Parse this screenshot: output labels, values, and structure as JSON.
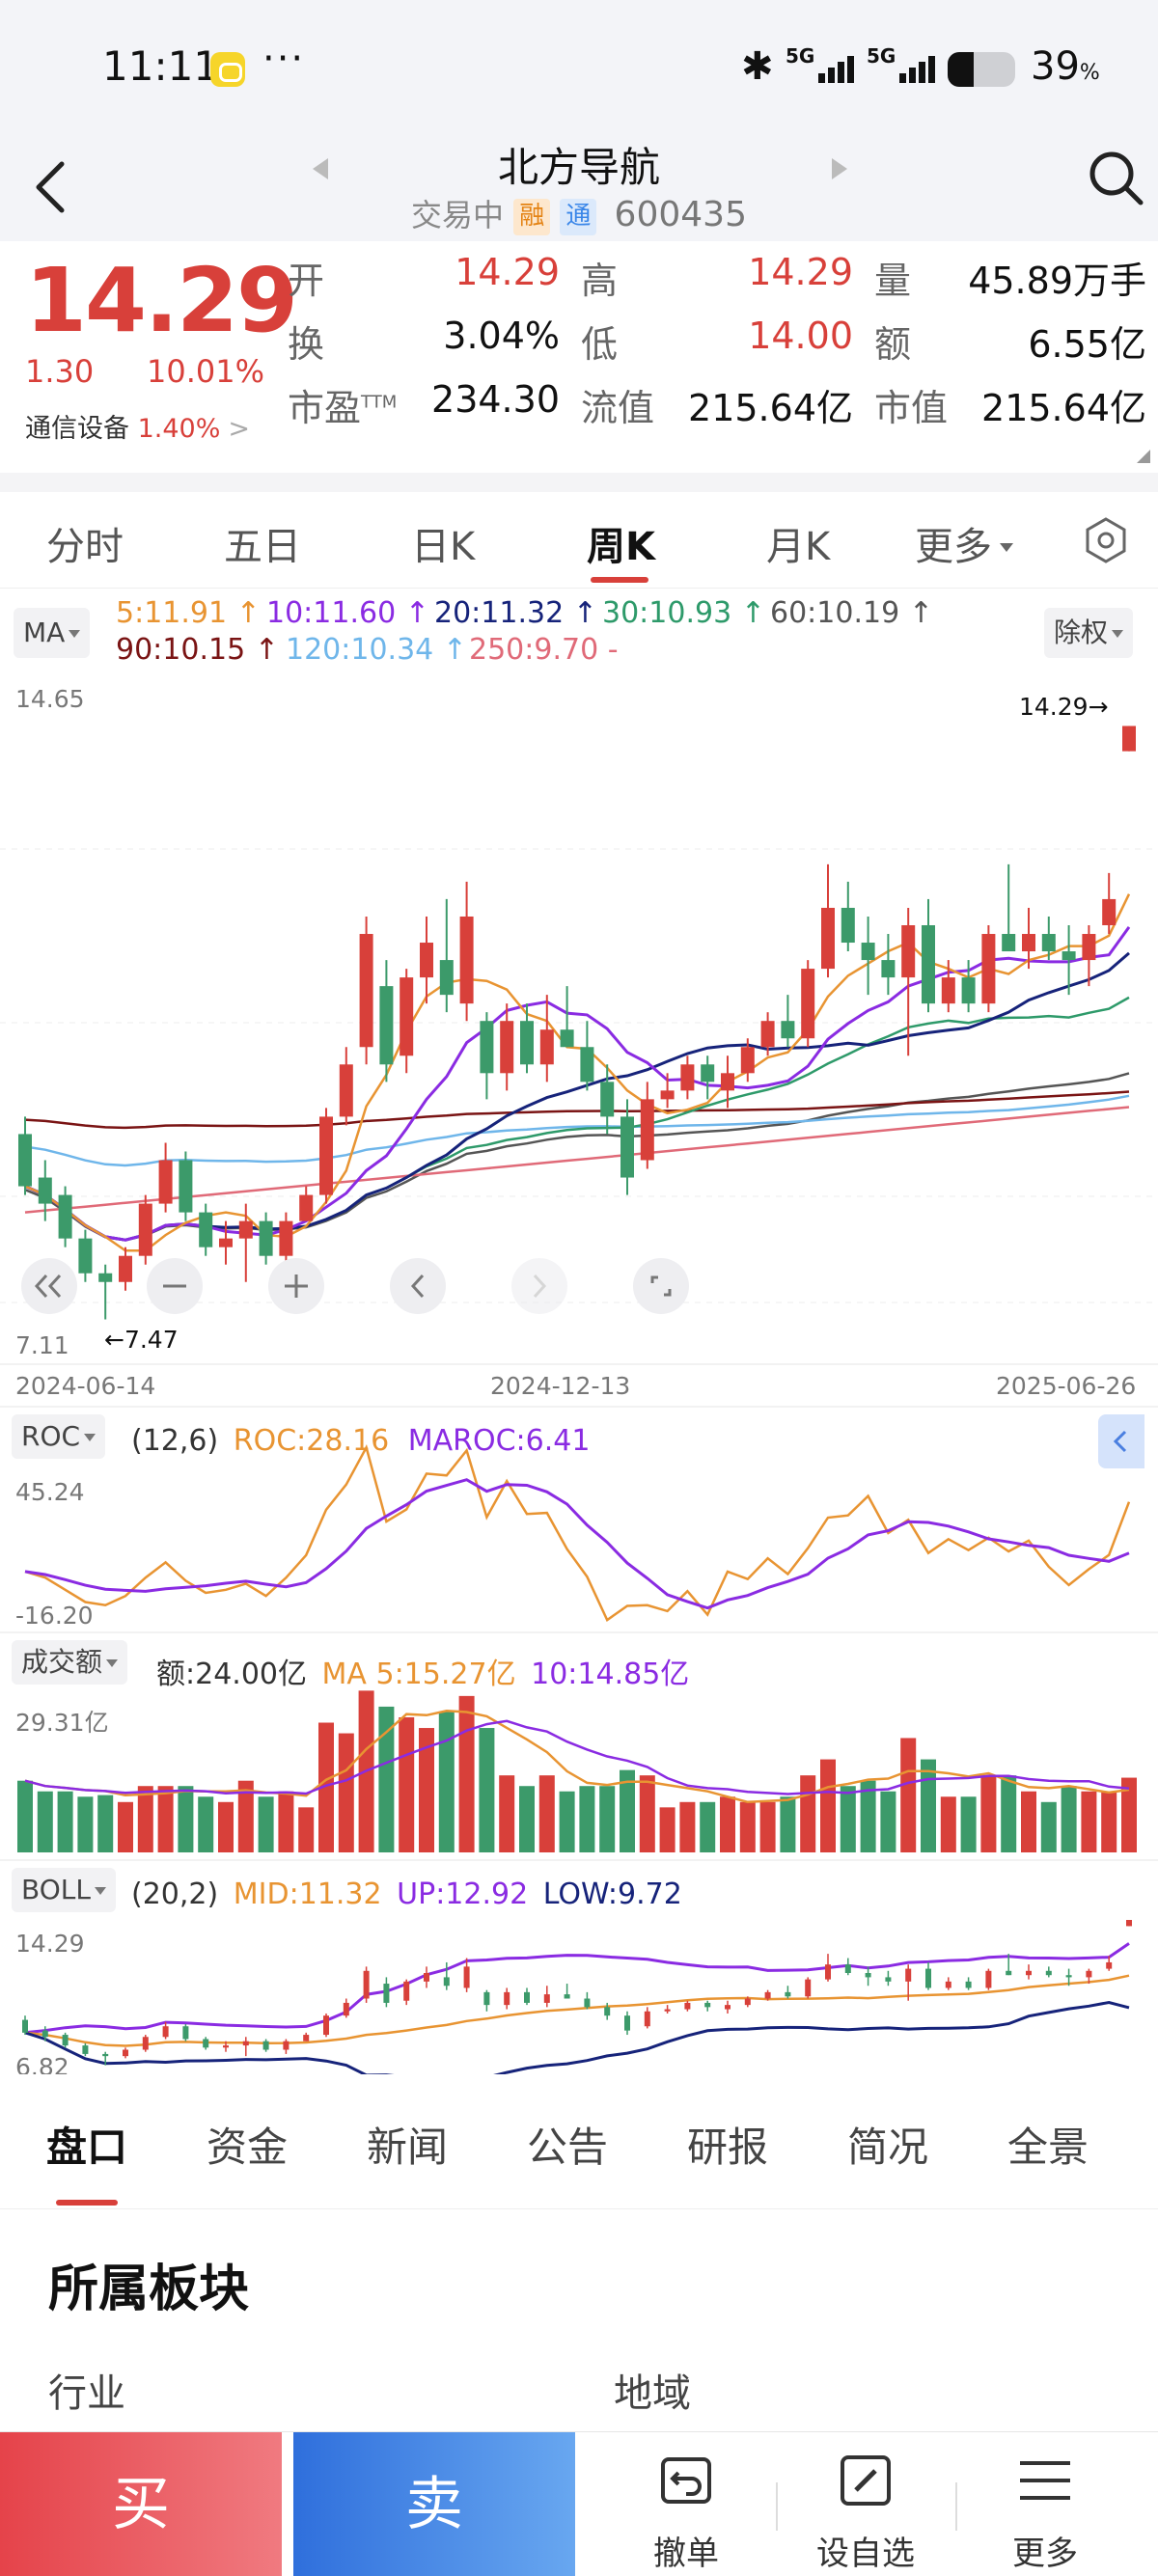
{
  "status_bar": {
    "time": "11:11",
    "dots": "···",
    "battery_pct": "39",
    "battery_unit": "%",
    "battery_level": 0.39,
    "signal_1": "5G",
    "signal_2": "5G"
  },
  "header": {
    "title": "北方导航",
    "status": "交易中",
    "tag_margin": "融",
    "tag_connect": "通",
    "code": "600435"
  },
  "quote": {
    "price": "14.29",
    "change": "1.30",
    "change_pct": "10.01%",
    "industry": "通信设备",
    "industry_pct": "1.40%",
    "fields": [
      {
        "label": "开",
        "value": "14.29",
        "color": "red"
      },
      {
        "label": "高",
        "value": "14.29",
        "color": "red"
      },
      {
        "label": "量",
        "value": "45.89万手",
        "color": "blk"
      },
      {
        "label": "换",
        "value": "3.04%",
        "color": "blk"
      },
      {
        "label": "低",
        "value": "14.00",
        "color": "red"
      },
      {
        "label": "额",
        "value": "6.55亿",
        "color": "blk"
      },
      {
        "label": "市盈",
        "value": "234.30",
        "color": "blk",
        "sup": "TTM"
      },
      {
        "label": "流值",
        "value": "215.64亿",
        "color": "blk"
      },
      {
        "label": "市值",
        "value": "215.64亿",
        "color": "blk"
      }
    ]
  },
  "period_tabs": [
    "分时",
    "五日",
    "日K",
    "周K",
    "月K",
    "更多"
  ],
  "active_period": "周K",
  "ma": {
    "selector": "MA",
    "adjust": "除权",
    "items": [
      {
        "text": "5:11.91 ↑",
        "color": "#e89432"
      },
      {
        "text": "10:11.60 ↑",
        "color": "#8a2be2"
      },
      {
        "text": "20:11.32 ↑",
        "color": "#16237a"
      },
      {
        "text": "30:10.93 ↑",
        "color": "#2e9a6a"
      },
      {
        "text": "60:10.19 ↑",
        "color": "#555555"
      },
      {
        "text": "90:10.15 ↑",
        "color": "#7a1414"
      },
      {
        "text": "120:10.34 ↑",
        "color": "#6fb6ea"
      },
      {
        "text": "250:9.70 -",
        "color": "#e06a78"
      }
    ]
  },
  "kline": {
    "y_max_label": "14.65",
    "y_min_label": "7.11",
    "high_mark": "14.29→",
    "low_mark": "←7.47",
    "dates": [
      "2024-06-14",
      "2024-12-13",
      "2025-06-26"
    ]
  },
  "chart_data": {
    "type": "candlestick",
    "period": "weekly",
    "price_range": [
      7.11,
      14.65
    ],
    "start_date": "2024-06-14",
    "end_date": "2025-06-26",
    "candles": [
      [
        9.6,
        9.8,
        8.9,
        9.0
      ],
      [
        9.1,
        9.3,
        8.6,
        8.8
      ],
      [
        8.9,
        9.0,
        8.3,
        8.4
      ],
      [
        8.4,
        8.5,
        7.9,
        8.0
      ],
      [
        8.0,
        8.1,
        7.47,
        7.9
      ],
      [
        7.9,
        8.3,
        7.8,
        8.2
      ],
      [
        8.2,
        8.9,
        8.1,
        8.8
      ],
      [
        8.8,
        9.5,
        8.7,
        9.3
      ],
      [
        9.3,
        9.4,
        8.6,
        8.7
      ],
      [
        8.7,
        8.8,
        8.2,
        8.3
      ],
      [
        8.3,
        8.6,
        8.1,
        8.4
      ],
      [
        8.4,
        8.8,
        7.9,
        8.6
      ],
      [
        8.6,
        8.7,
        8.1,
        8.2
      ],
      [
        8.2,
        8.7,
        8.0,
        8.6
      ],
      [
        8.6,
        9.0,
        8.6,
        8.9
      ],
      [
        8.9,
        9.9,
        8.8,
        9.8
      ],
      [
        9.8,
        10.6,
        9.7,
        10.4
      ],
      [
        10.6,
        12.1,
        10.4,
        11.9
      ],
      [
        11.3,
        11.6,
        10.2,
        10.4
      ],
      [
        10.5,
        11.5,
        10.3,
        11.4
      ],
      [
        11.4,
        12.1,
        11.1,
        11.8
      ],
      [
        11.6,
        12.3,
        11.0,
        11.2
      ],
      [
        11.1,
        12.5,
        10.9,
        12.1
      ],
      [
        10.9,
        11.0,
        10.0,
        10.3
      ],
      [
        10.3,
        11.1,
        10.1,
        10.9
      ],
      [
        10.9,
        11.1,
        10.3,
        10.4
      ],
      [
        10.4,
        11.2,
        10.2,
        10.8
      ],
      [
        10.8,
        11.3,
        10.6,
        10.6
      ],
      [
        10.6,
        10.9,
        10.1,
        10.2
      ],
      [
        10.2,
        10.4,
        9.6,
        9.8
      ],
      [
        9.8,
        10.0,
        8.9,
        9.1
      ],
      [
        9.3,
        10.2,
        9.2,
        10.0
      ],
      [
        10.0,
        10.3,
        9.9,
        10.1
      ],
      [
        10.1,
        10.5,
        10.0,
        10.4
      ],
      [
        10.4,
        10.5,
        10.0,
        10.2
      ],
      [
        10.1,
        10.5,
        9.9,
        10.3
      ],
      [
        10.3,
        10.7,
        10.2,
        10.6
      ],
      [
        10.6,
        11.0,
        10.5,
        10.9
      ],
      [
        10.9,
        11.2,
        10.6,
        10.7
      ],
      [
        10.7,
        11.6,
        10.6,
        11.5
      ],
      [
        11.5,
        12.7,
        11.4,
        12.2
      ],
      [
        12.2,
        12.5,
        11.7,
        11.8
      ],
      [
        11.8,
        12.1,
        11.2,
        11.6
      ],
      [
        11.6,
        11.9,
        11.2,
        11.4
      ],
      [
        11.4,
        12.2,
        10.5,
        12.0
      ],
      [
        12.0,
        12.3,
        11.0,
        11.1
      ],
      [
        11.1,
        11.6,
        11.0,
        11.4
      ],
      [
        11.4,
        11.6,
        11.0,
        11.1
      ],
      [
        11.1,
        12.0,
        11.0,
        11.9
      ],
      [
        11.9,
        12.7,
        11.7,
        11.7
      ],
      [
        11.7,
        12.2,
        11.5,
        11.9
      ],
      [
        11.9,
        12.1,
        11.6,
        11.7
      ],
      [
        11.7,
        12.0,
        11.2,
        11.6
      ],
      [
        11.6,
        12.0,
        11.3,
        11.9
      ],
      [
        12.0,
        12.6,
        11.9,
        12.3
      ],
      [
        14.0,
        14.29,
        14.0,
        14.29
      ]
    ],
    "roc": {
      "params": "(12,6)",
      "roc": "ROC:28.16",
      "maroc": "MAROC:6.41",
      "ymax": "45.24",
      "ymin": "-16.20"
    },
    "turnover": {
      "title": "成交额",
      "amount": "额:24.00亿",
      "ma5": "MA 5:15.27亿",
      "ma10": "10:14.85亿",
      "ymax": "29.31亿"
    },
    "boll": {
      "title": "BOLL",
      "params": "(20,2)",
      "mid": "MID:11.32",
      "up": "UP:12.92",
      "low": "LOW:9.72",
      "ymax": "14.29",
      "ymin": "6.82"
    },
    "ind_selector": "ROC"
  },
  "bottom_tabs": [
    "盘口",
    "资金",
    "新闻",
    "公告",
    "研报",
    "简况",
    "全景"
  ],
  "active_bottom": "盘口",
  "section": {
    "title": "所属板块",
    "col1": "行业",
    "col2": "地域"
  },
  "actions": {
    "buy": "买",
    "sell": "卖",
    "cancel": "撤单",
    "watch": "设自选",
    "more": "更多"
  }
}
